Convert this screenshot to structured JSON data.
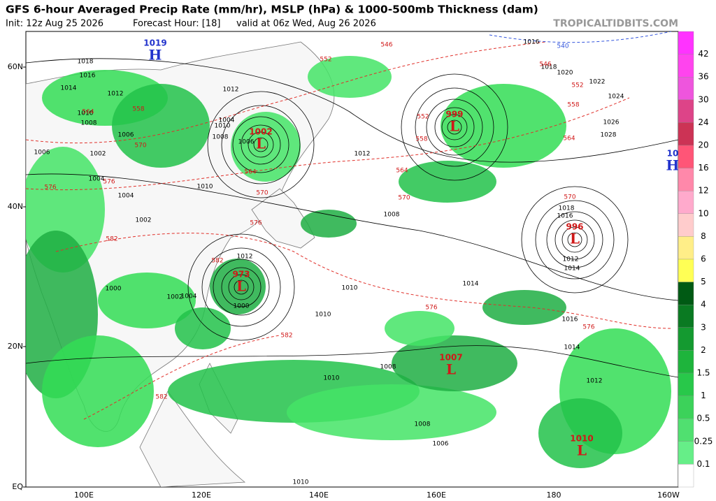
{
  "header": {
    "title": "GFS 6-hour Averaged Precip Rate (mm/hr), MSLP (hPa) & 1000-500mb Thickness (dam)",
    "init": "Init: 12z Aug 25 2026",
    "forecast_hour": "Forecast Hour: [18]",
    "valid": "valid at 06z Wed, Aug 26 2026",
    "site": "TROPICALTIDBITS.COM"
  },
  "latitudes": [
    "60N",
    "40N",
    "20N",
    "EQ"
  ],
  "longitudes": [
    "100E",
    "120E",
    "140E",
    "160E",
    "180",
    "160W"
  ],
  "colorbar": {
    "labels": [
      "42",
      "36",
      "30",
      "24",
      "20",
      "16",
      "12",
      "10",
      "8",
      "6",
      "5",
      "4",
      "3",
      "2",
      "1.5",
      "1",
      "0.5",
      "0.25",
      "0.1"
    ]
  },
  "pressure_centers": [
    {
      "letter": "H",
      "value": "1019"
    },
    {
      "letter": "L",
      "value": "1002"
    },
    {
      "letter": "L",
      "value": "973"
    },
    {
      "letter": "L",
      "value": "999"
    },
    {
      "letter": "H",
      "value": "10"
    },
    {
      "letter": "L",
      "value": "996"
    },
    {
      "letter": "L",
      "value": "1007"
    },
    {
      "letter": "L",
      "value": "1010"
    }
  ],
  "isobar_labels": [
    "1018",
    "1016",
    "1014",
    "1012",
    "1010",
    "1008",
    "1006",
    "1002",
    "1006",
    "1004",
    "1004",
    "1002",
    "1000",
    "1004",
    "1002",
    "1000",
    "1012",
    "1010",
    "1008",
    "1006",
    "1004",
    "1012",
    "1016",
    "1018",
    "1020",
    "1022",
    "1024",
    "1026",
    "1028",
    "1018",
    "1016",
    "1012",
    "1014",
    "1014",
    "1016",
    "1014",
    "1012",
    "1008",
    "1010",
    "1010",
    "1010",
    "1008",
    "1006",
    "1008",
    "1010",
    "1012",
    "1010"
  ],
  "thickness_labels": [
    "564",
    "558",
    "570",
    "576",
    "582",
    "552",
    "546",
    "564",
    "570",
    "576",
    "582",
    "552",
    "558",
    "564",
    "570",
    "576",
    "540",
    "546",
    "552",
    "558",
    "564",
    "570",
    "576",
    "582",
    "582",
    "576"
  ]
}
